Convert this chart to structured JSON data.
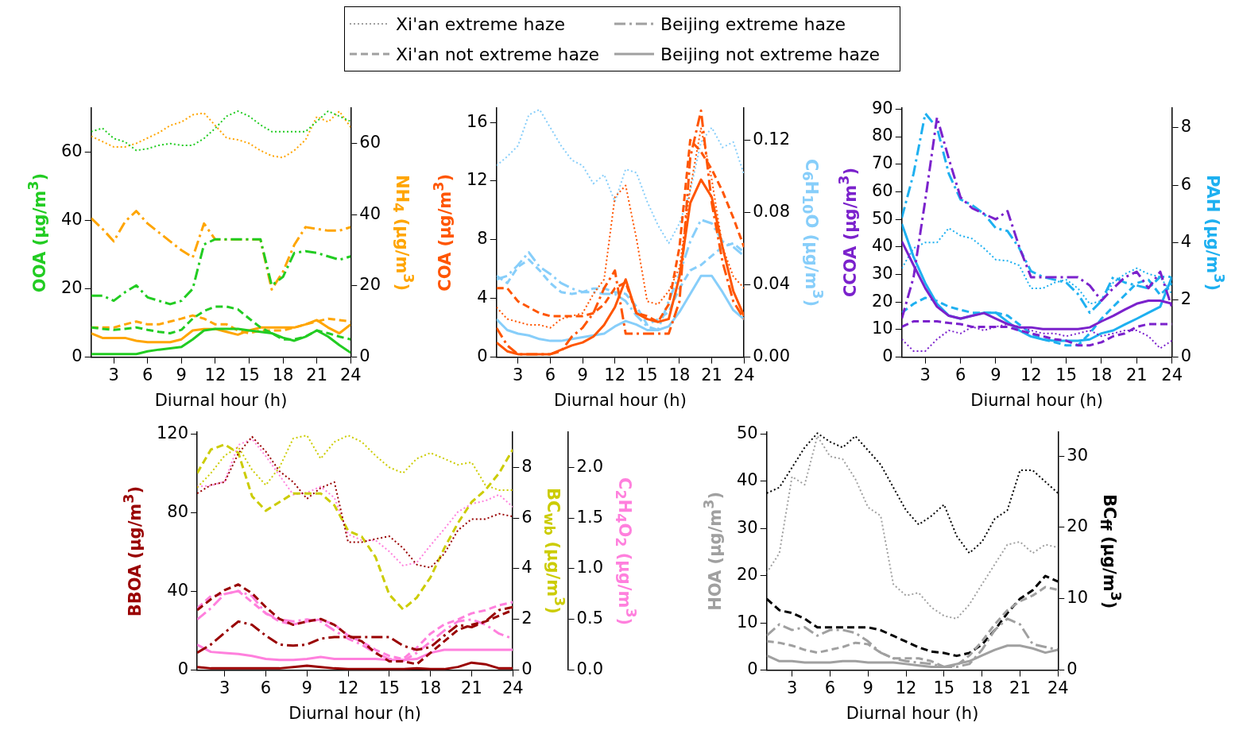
{
  "chart_data": [
    {
      "type": "other",
      "series": [
        {
          "name": "Xi'an extreme haze",
          "color": "#a0a0a0",
          "line_style": "dotted"
        },
        {
          "name": "Xi'an not extreme haze",
          "color": "#a0a0a0",
          "line_style": "dashed"
        },
        {
          "name": "Beijing extreme haze",
          "color": "#a0a0a0",
          "line_style": "dashdot"
        },
        {
          "name": "Beijing not extreme haze",
          "color": "#a0a0a0",
          "line_style": "solid"
        }
      ]
    },
    {
      "type": "line",
      "xlabel": "Diurnal hour (h)",
      "ylabel": "OOA (µg/m$^{3}$)",
      "y2label": "NH$_{4}$ (µg/m$^{3}$)",
      "x": [
        1,
        2,
        3,
        4,
        5,
        6,
        7,
        8,
        9,
        10,
        11,
        12,
        13,
        14,
        15,
        16,
        17,
        18,
        19,
        20,
        21,
        22,
        23,
        24
      ],
      "xlim": [
        1,
        24
      ],
      "xticks": [
        3,
        6,
        9,
        12,
        15,
        18,
        21,
        24
      ],
      "ylim": [
        0,
        73
      ],
      "yticks": [
        0,
        20,
        40,
        60
      ],
      "y2lim": [
        0,
        70
      ],
      "y2ticks": [
        0,
        20,
        40,
        60
      ],
      "series": [
        {
          "color": "#22cc22",
          "line_style": "dotted",
          "values": [
            66,
            67,
            64,
            63,
            60.5,
            61,
            62,
            62.5,
            62,
            62,
            64,
            67,
            70.5,
            72,
            70.5,
            68,
            66,
            66,
            66,
            66,
            69,
            72,
            70.5,
            69
          ]
        },
        {
          "color": "#22cc22",
          "line_style": "dashed",
          "values": [
            8.7,
            8.3,
            8,
            8.3,
            8.7,
            8,
            7.4,
            7,
            8,
            11.3,
            13.5,
            14.8,
            14.8,
            14,
            11.3,
            8.7,
            7,
            5.2,
            5.2,
            6,
            7.8,
            7,
            6,
            5.2
          ]
        },
        {
          "color": "#22cc22",
          "line_style": "dashdot",
          "values": [
            18,
            18,
            16.5,
            19,
            21,
            17.5,
            16.5,
            15.5,
            16.5,
            20,
            33,
            34.5,
            34.5,
            34.5,
            34.5,
            34.5,
            21,
            23.5,
            30.5,
            31,
            30.5,
            29.5,
            28.5,
            29.5
          ]
        },
        {
          "color": "#22cc22",
          "line_style": "solid",
          "values": [
            0.9,
            0.9,
            0.9,
            0.9,
            0.9,
            1.7,
            2.2,
            2.6,
            3,
            5.2,
            7.8,
            8.3,
            8.3,
            8.3,
            7.8,
            7.4,
            7,
            5.7,
            4.8,
            6,
            7.8,
            6,
            3.5,
            1.3
          ]
        },
        {
          "color": "#ffa500",
          "line_style": "dotted",
          "axis": "y2",
          "values": [
            62,
            60.5,
            59,
            59,
            60,
            61.5,
            63,
            65,
            66,
            68,
            68.5,
            65,
            61.5,
            61,
            60,
            58,
            56.5,
            56,
            58,
            61,
            67.5,
            66,
            69,
            64.5
          ]
        },
        {
          "color": "#ffa500",
          "line_style": "dashed",
          "axis": "y2",
          "values": [
            8.3,
            8.3,
            8.3,
            9.2,
            10,
            9.2,
            9.2,
            10,
            10.8,
            11.7,
            10.8,
            9.2,
            9.2,
            7.5,
            6.7,
            7.5,
            7.5,
            7.5,
            8.3,
            9.2,
            10,
            10.8,
            10.4,
            10
          ]
        },
        {
          "color": "#ffa500",
          "line_style": "dashdot",
          "axis": "y2",
          "values": [
            39,
            36,
            32.5,
            38,
            41,
            37.5,
            35,
            32.5,
            30,
            28,
            37.5,
            33,
            33,
            33,
            33,
            33,
            19,
            24,
            31.5,
            36.5,
            36,
            35.5,
            35.5,
            36.5
          ]
        },
        {
          "color": "#ffa500",
          "line_style": "solid",
          "axis": "y2",
          "values": [
            6.7,
            5.4,
            5.4,
            5.4,
            4.6,
            4.2,
            4.2,
            4.2,
            5,
            7.5,
            7.9,
            7.9,
            7.1,
            6.3,
            7.5,
            8.3,
            8.3,
            8.3,
            8.3,
            9.2,
            10.4,
            8.3,
            6.7,
            9.2
          ]
        }
      ]
    },
    {
      "type": "line",
      "xlabel": "Diurnal hour (h)",
      "ylabel": "COA (µg/m$^{3}$)",
      "y2label": "C$_{6}$H$_{10}$O (µg/m$^{3}$)",
      "x": [
        1,
        2,
        3,
        4,
        5,
        6,
        7,
        8,
        9,
        10,
        11,
        12,
        13,
        14,
        15,
        16,
        17,
        18,
        19,
        20,
        21,
        22,
        23,
        24
      ],
      "xlim": [
        1,
        24
      ],
      "xticks": [
        3,
        6,
        9,
        12,
        15,
        18,
        21,
        24
      ],
      "ylim": [
        0,
        17
      ],
      "yticks": [
        0,
        4,
        8,
        12,
        16
      ],
      "y2lim": [
        0,
        0.138
      ],
      "y2ticks": [
        {
          "value": 0,
          "label": "0.00"
        },
        {
          "value": 0.04,
          "label": "0.04"
        },
        {
          "value": 0.08,
          "label": "0.08"
        },
        {
          "value": 0.12,
          "label": "0.12"
        }
      ],
      "series": [
        {
          "color": "#ff5500",
          "line_style": "dotted",
          "values": [
            3.4,
            2.6,
            2.4,
            2.2,
            2.2,
            2,
            2.6,
            2.8,
            3,
            4.3,
            5.3,
            10.9,
            11.7,
            8.1,
            3.8,
            3.6,
            4.5,
            6.1,
            11.5,
            15.6,
            12.1,
            7.5,
            5.5,
            4.7
          ]
        },
        {
          "color": "#ff5500",
          "line_style": "dashed",
          "values": [
            4.7,
            4.7,
            3.8,
            3.4,
            3,
            2.8,
            2.8,
            2.8,
            2.8,
            3,
            3.6,
            4.7,
            5.1,
            3,
            2.8,
            2.4,
            3.6,
            7.5,
            14.8,
            14,
            12.8,
            11.3,
            9.5,
            7.5
          ]
        },
        {
          "color": "#ff5500",
          "line_style": "dashdot",
          "values": [
            2,
            0.8,
            0.2,
            0.2,
            0.2,
            0.2,
            0.4,
            1.4,
            2,
            3,
            4.7,
            5.9,
            1.6,
            1.6,
            1.6,
            1.6,
            1.6,
            3.8,
            13.6,
            16.8,
            10.5,
            6.5,
            3.8,
            2.6
          ]
        },
        {
          "color": "#ff5500",
          "line_style": "solid",
          "values": [
            1,
            0.4,
            0.2,
            0.2,
            0.2,
            0.2,
            0.5,
            0.8,
            1,
            1.4,
            2.2,
            3.4,
            5.3,
            3,
            2.6,
            2.4,
            2.6,
            5.5,
            10.5,
            12.1,
            10.9,
            7.5,
            4.5,
            2.8
          ]
        },
        {
          "color": "#87cefa",
          "line_style": "dotted",
          "axis": "y2",
          "values": [
            0.106,
            0.111,
            0.117,
            0.134,
            0.137,
            0.127,
            0.117,
            0.109,
            0.106,
            0.096,
            0.101,
            0.086,
            0.104,
            0.102,
            0.086,
            0.073,
            0.063,
            0.074,
            0.092,
            0.119,
            0.127,
            0.116,
            0.119,
            0.101
          ]
        },
        {
          "color": "#87cefa",
          "line_style": "dashed",
          "axis": "y2",
          "values": [
            0.045,
            0.041,
            0.05,
            0.054,
            0.048,
            0.041,
            0.036,
            0.035,
            0.036,
            0.038,
            0.038,
            0.036,
            0.035,
            0.028,
            0.018,
            0.021,
            0.025,
            0.038,
            0.048,
            0.051,
            0.056,
            0.061,
            0.063,
            0.058
          ]
        },
        {
          "color": "#87cefa",
          "line_style": "dashdot",
          "axis": "y2",
          "values": [
            0.043,
            0.045,
            0.051,
            0.058,
            0.05,
            0.046,
            0.041,
            0.038,
            0.036,
            0.036,
            0.035,
            0.035,
            0.031,
            0.023,
            0.017,
            0.015,
            0.031,
            0.046,
            0.064,
            0.076,
            0.074,
            0.064,
            0.061,
            0.056
          ]
        },
        {
          "color": "#87cefa",
          "line_style": "solid",
          "axis": "y2",
          "values": [
            0.021,
            0.015,
            0.013,
            0.012,
            0.01,
            0.009,
            0.009,
            0.01,
            0.011,
            0.012,
            0.013,
            0.017,
            0.02,
            0.018,
            0.015,
            0.015,
            0.017,
            0.025,
            0.035,
            0.045,
            0.045,
            0.036,
            0.026,
            0.021
          ]
        }
      ]
    },
    {
      "type": "line",
      "xlabel": "Diurnal hour (h)",
      "ylabel": "CCOA (µg/m$^{3}$)",
      "y2label": "PAH (µg/m$^{3}$)",
      "x": [
        1,
        2,
        3,
        4,
        5,
        6,
        7,
        8,
        9,
        10,
        11,
        12,
        13,
        14,
        15,
        16,
        17,
        18,
        19,
        20,
        21,
        22,
        23,
        24
      ],
      "xlim": [
        1,
        24
      ],
      "xticks": [
        3,
        6,
        9,
        12,
        15,
        18,
        21,
        24
      ],
      "ylim": [
        0,
        90.5
      ],
      "yticks": [
        0,
        10,
        20,
        30,
        40,
        50,
        60,
        70,
        80,
        90
      ],
      "y2lim": [
        0,
        8.7
      ],
      "y2ticks": [
        0,
        2,
        4,
        6,
        8
      ],
      "series": [
        {
          "color": "#7b22cc",
          "line_style": "dotted",
          "values": [
            6.5,
            2.2,
            2.2,
            6.5,
            9.7,
            8.6,
            11,
            9.7,
            11,
            12,
            11,
            9.7,
            8.6,
            8.6,
            7.6,
            8.6,
            9.7,
            7.6,
            8.6,
            9.7,
            9.7,
            7.6,
            3.2,
            6
          ]
        },
        {
          "color": "#7b22cc",
          "line_style": "dashed",
          "values": [
            11,
            13,
            13,
            13,
            12.4,
            12,
            11,
            11,
            11,
            11,
            9.7,
            8.6,
            7.6,
            6.5,
            6,
            4.3,
            4.3,
            5.4,
            7.6,
            8.6,
            11,
            12,
            12,
            12
          ]
        },
        {
          "color": "#7b22cc",
          "line_style": "dashdot",
          "values": [
            14,
            29,
            57,
            87,
            72,
            58,
            54,
            52,
            50,
            53,
            40,
            29,
            29,
            29,
            29,
            29,
            26,
            20.5,
            25,
            29,
            31,
            25,
            31,
            18
          ]
        },
        {
          "color": "#7b22cc",
          "line_style": "solid",
          "values": [
            42,
            33.4,
            25,
            18.3,
            15,
            14,
            15,
            16,
            14,
            12,
            10.8,
            10.8,
            10.2,
            10.2,
            10.2,
            10.2,
            10.8,
            13,
            15,
            17.3,
            19.4,
            20.5,
            20.5,
            19.4
          ]
        },
        {
          "color": "#1eb0f0",
          "line_style": "dotted",
          "axis": "y2",
          "values": [
            3.1,
            3.8,
            4,
            4,
            4.5,
            4.24,
            4.13,
            3.8,
            3.4,
            3.36,
            3.2,
            2.4,
            2.4,
            2.6,
            2.7,
            2.4,
            1.86,
            1.96,
            2.6,
            2.9,
            3.1,
            2.9,
            2.8,
            2.2
          ]
        },
        {
          "color": "#1eb0f0",
          "line_style": "dashed",
          "axis": "y2",
          "values": [
            1.55,
            1.86,
            2.07,
            1.96,
            1.76,
            1.65,
            1.55,
            1.55,
            1.55,
            1.45,
            1.14,
            0.83,
            0.62,
            0.52,
            0.41,
            0.41,
            0.83,
            1.34,
            1.76,
            2.17,
            2.58,
            2.7,
            2.17,
            2.58
          ]
        },
        {
          "color": "#1eb0f0",
          "line_style": "dashdot",
          "axis": "y2",
          "values": [
            4.86,
            6.4,
            8.5,
            8,
            6.4,
            5.5,
            5.3,
            5,
            4.5,
            4.4,
            3.8,
            3,
            2.8,
            2.7,
            2.6,
            2.2,
            1.55,
            1.96,
            2.8,
            2.6,
            2.5,
            2.4,
            2.8,
            2.8
          ]
        },
        {
          "color": "#1eb0f0",
          "line_style": "solid",
          "axis": "y2",
          "values": [
            4.65,
            3.5,
            2.58,
            1.86,
            1.45,
            1.34,
            1.45,
            1.55,
            1.55,
            1.24,
            0.93,
            0.72,
            0.62,
            0.57,
            0.57,
            0.57,
            0.62,
            0.83,
            0.93,
            1.14,
            1.34,
            1.55,
            1.76,
            2.8
          ]
        }
      ]
    },
    {
      "type": "line",
      "xlabel": "Diurnal hour (h)",
      "ylabel": "BBOA (µg/m$^{3}$)",
      "y2label": "BC$_{wb}$ (µg/m$^{3}$)",
      "y3label": "C$_{2}$H$_{4}$O$_{2}$ (µg/m$^{3}$)",
      "x": [
        1,
        2,
        3,
        4,
        5,
        6,
        7,
        8,
        9,
        10,
        11,
        12,
        13,
        14,
        15,
        16,
        17,
        18,
        19,
        20,
        21,
        22,
        23,
        24
      ],
      "xlim": [
        1,
        24
      ],
      "xticks": [
        3,
        6,
        9,
        12,
        15,
        18,
        21,
        24
      ],
      "ylim": [
        0,
        121
      ],
      "yticks": [
        0,
        40,
        80,
        120
      ],
      "y2lim": [
        0,
        9.4
      ],
      "y2ticks": [
        0,
        2,
        4,
        6,
        8
      ],
      "y3lim": [
        0,
        2.35
      ],
      "y3ticks": [
        {
          "value": 0,
          "label": "0.0"
        },
        {
          "value": 0.5,
          "label": "0.5"
        },
        {
          "value": 1,
          "label": "1.0"
        },
        {
          "value": 1.5,
          "label": "1.5"
        },
        {
          "value": 2,
          "label": "2.0"
        }
      ],
      "series": [
        {
          "color": "#990000",
          "line_style": "dotted",
          "values": [
            89.7,
            94,
            95.5,
            110,
            118.5,
            111,
            101,
            95.5,
            87,
            92.5,
            95.5,
            65,
            65,
            66.6,
            68,
            62,
            53.6,
            52,
            59,
            71,
            76.7,
            76.7,
            79.4,
            78
          ]
        },
        {
          "color": "#990000",
          "line_style": "dashed",
          "values": [
            30.5,
            36,
            40.6,
            43.5,
            39,
            32,
            26,
            23,
            24.7,
            26,
            23,
            17.5,
            14.6,
            8.8,
            4.5,
            4.5,
            3,
            8.8,
            14.6,
            20.4,
            23,
            24.7,
            27.6,
            30.5
          ]
        },
        {
          "color": "#990000",
          "line_style": "dashdot",
          "values": [
            8.8,
            13,
            19,
            24.7,
            23,
            17.5,
            13,
            12.4,
            13,
            16,
            16.8,
            16.8,
            16.8,
            16.8,
            16.8,
            12.4,
            10.3,
            11.7,
            17.5,
            23,
            21.8,
            24.7,
            30.5,
            32
          ]
        },
        {
          "color": "#990000",
          "line_style": "solid",
          "values": [
            1.6,
            0.9,
            0.9,
            0.9,
            0.9,
            0.9,
            0.9,
            1.6,
            2.3,
            1.6,
            0.9,
            0.5,
            0.5,
            0.5,
            0.5,
            0.5,
            0.9,
            0.5,
            0.5,
            1.6,
            3.8,
            3,
            0.9,
            0.9
          ]
        },
        {
          "color": "#cccc00",
          "line_style": "dotted",
          "axis": "y2",
          "values": [
            7.2,
            7.77,
            8.46,
            8.8,
            7.9,
            7.3,
            8,
            9.14,
            9.26,
            8.34,
            9,
            9.26,
            9,
            8.46,
            8,
            7.77,
            8.34,
            8.57,
            8.34,
            8.1,
            8.2,
            7.3,
            7.1,
            7.1
          ]
        },
        {
          "color": "#cccc00",
          "line_style": "dashed",
          "axis": "y2",
          "values": [
            7.77,
            8.7,
            8.9,
            8.57,
            6.86,
            6.29,
            6.63,
            6.97,
            6.97,
            6.97,
            6.5,
            5.5,
            5.26,
            4.46,
            2.98,
            2.4,
            2.86,
            3.66,
            4.8,
            5.8,
            6.63,
            7.1,
            7.77,
            8.7
          ]
        },
        {
          "color": "#ff80dd",
          "line_style": "dotted",
          "axis": "y3",
          "values": [
            1.81,
            1.82,
            1.86,
            2.22,
            2.28,
            2.11,
            1.92,
            1.73,
            1.75,
            1.81,
            1.7,
            1.34,
            1.28,
            1.28,
            1.17,
            1.03,
            1.06,
            1.23,
            1.39,
            1.56,
            1.64,
            1.67,
            1.73,
            1.61
          ]
        },
        {
          "color": "#ff80dd",
          "line_style": "dashed",
          "axis": "y3",
          "values": [
            0.61,
            0.73,
            0.75,
            0.78,
            0.67,
            0.56,
            0.48,
            0.45,
            0.48,
            0.5,
            0.45,
            0.34,
            0.28,
            0.2,
            0.14,
            0.11,
            0.22,
            0.36,
            0.45,
            0.5,
            0.56,
            0.59,
            0.64,
            0.67
          ]
        },
        {
          "color": "#ff80dd",
          "line_style": "dashdot",
          "axis": "y3",
          "values": [
            0.5,
            0.61,
            0.75,
            0.78,
            0.73,
            0.56,
            0.5,
            0.48,
            0.5,
            0.48,
            0.39,
            0.31,
            0.25,
            0.17,
            0.11,
            0.09,
            0.17,
            0.28,
            0.39,
            0.48,
            0.5,
            0.45,
            0.36,
            0.31
          ]
        },
        {
          "color": "#ff80dd",
          "line_style": "solid",
          "axis": "y3",
          "values": [
            0.25,
            0.18,
            0.17,
            0.16,
            0.14,
            0.11,
            0.1,
            0.1,
            0.11,
            0.13,
            0.11,
            0.11,
            0.11,
            0.11,
            0.1,
            0.1,
            0.11,
            0.17,
            0.2,
            0.2,
            0.2,
            0.2,
            0.2,
            0.2
          ]
        }
      ]
    },
    {
      "type": "line",
      "xlabel": "Diurnal hour (h)",
      "ylabel": "HOA (µg/m$^{3}$)",
      "y2label": "BC$_{ff}$ (µg/m$^{3}$)",
      "x": [
        1,
        2,
        3,
        4,
        5,
        6,
        7,
        8,
        9,
        10,
        11,
        12,
        13,
        14,
        15,
        16,
        17,
        18,
        19,
        20,
        21,
        22,
        23,
        24
      ],
      "xlim": [
        1,
        24
      ],
      "xticks": [
        3,
        6,
        9,
        12,
        15,
        18,
        21,
        24
      ],
      "ylim": [
        0,
        50.5
      ],
      "yticks": [
        0,
        10,
        20,
        30,
        40,
        50
      ],
      "y2lim": [
        0,
        33.4
      ],
      "y2ticks": [
        0,
        10,
        20,
        30
      ],
      "series": [
        {
          "color": "#a0a0a0",
          "line_style": "dotted",
          "values": [
            20.6,
            24.8,
            41,
            39.3,
            49.6,
            45.3,
            44.7,
            40.5,
            34.5,
            32.7,
            18.2,
            15.8,
            16.4,
            13.3,
            11.5,
            10.9,
            13.9,
            18.2,
            22.4,
            26.6,
            27.2,
            24.8,
            26.6,
            26
          ]
        },
        {
          "color": "#a0a0a0",
          "line_style": "dashed",
          "values": [
            6.1,
            5.8,
            5.2,
            4.3,
            3.7,
            4.3,
            4.9,
            5.8,
            5.5,
            3.7,
            2.5,
            2.5,
            2.5,
            1.9,
            0.7,
            1,
            3.1,
            6.1,
            9.7,
            12.7,
            14.6,
            15.8,
            17.6,
            17
          ]
        },
        {
          "color": "#a0a0a0",
          "line_style": "dashdot",
          "values": [
            7.3,
            9.7,
            8.5,
            9.1,
            7.3,
            8.5,
            8.5,
            7.9,
            6.1,
            3.7,
            2.5,
            1.9,
            1.6,
            1.3,
            0.7,
            0.7,
            1.3,
            4.3,
            8.5,
            10.9,
            9.7,
            5.5,
            4.9,
            4.3
          ]
        },
        {
          "color": "#a0a0a0",
          "line_style": "solid",
          "values": [
            3.1,
            1.9,
            1.9,
            1.6,
            1.6,
            1.6,
            1.9,
            1.9,
            1.6,
            1.6,
            1.6,
            1.3,
            1,
            0.7,
            0.7,
            1.3,
            1.9,
            3.1,
            4.3,
            5.2,
            5.2,
            4.6,
            3.7,
            4.3
          ]
        },
        {
          "color": "#000000",
          "line_style": "dotted",
          "axis": "y2",
          "values": [
            24.8,
            25.6,
            28.4,
            31.2,
            33.2,
            32,
            31.2,
            32.8,
            30.8,
            28.8,
            25.6,
            22.4,
            20.4,
            21.6,
            23.2,
            18.8,
            16.4,
            18,
            21.2,
            22.4,
            28,
            28,
            26.4,
            24.8
          ]
        },
        {
          "color": "#000000",
          "line_style": "dashed",
          "axis": "y2",
          "values": [
            10,
            8.4,
            8,
            7.2,
            6,
            6,
            6,
            6,
            6,
            5.6,
            4.8,
            4,
            3.2,
            2.6,
            2.4,
            2,
            2.4,
            3.6,
            5.6,
            8,
            10,
            11.2,
            13.2,
            12.4
          ]
        }
      ]
    }
  ]
}
